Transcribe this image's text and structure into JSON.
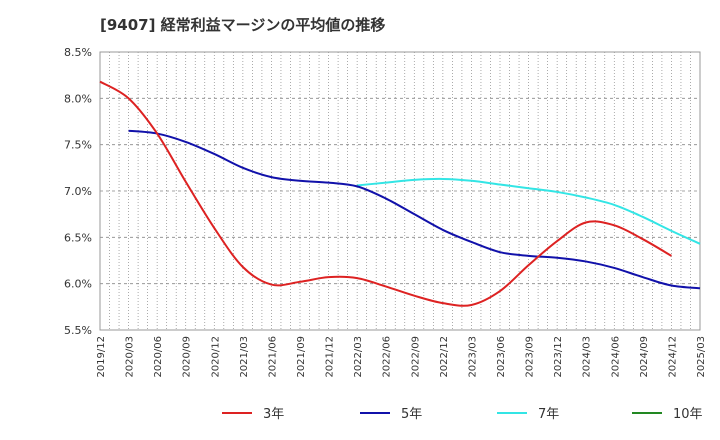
{
  "chart_data": {
    "type": "line",
    "title": "[9407]  経常利益マージンの平均値の推移",
    "xlabel": "",
    "ylabel": "",
    "ylim": [
      5.5,
      8.5
    ],
    "y_ticks": [
      "8.5%",
      "8.0%",
      "7.5%",
      "7.0%",
      "6.5%",
      "6.0%",
      "5.5%"
    ],
    "y_tick_values": [
      8.5,
      8.0,
      7.5,
      7.0,
      6.5,
      6.0,
      5.5
    ],
    "x_ticks": [
      "2019/12",
      "2020/03",
      "2020/06",
      "2020/09",
      "2020/12",
      "2021/03",
      "2021/06",
      "2021/09",
      "2021/12",
      "2022/03",
      "2022/06",
      "2022/09",
      "2022/12",
      "2023/03",
      "2023/06",
      "2023/09",
      "2023/12",
      "2024/03",
      "2024/06",
      "2024/09",
      "2024/12",
      "2025/03"
    ],
    "grid": true,
    "legend_position": "bottom",
    "series": [
      {
        "name": "3年",
        "color": "#dd2222",
        "start_index": 0,
        "values": [
          8.18,
          8.0,
          7.62,
          7.1,
          6.6,
          6.18,
          5.99,
          6.02,
          6.07,
          6.06,
          5.97,
          5.87,
          5.79,
          5.77,
          5.92,
          6.2,
          6.46,
          6.66,
          6.63,
          6.48,
          6.3
        ]
      },
      {
        "name": "5年",
        "color": "#1111aa",
        "start_index": 1,
        "values": [
          7.65,
          7.62,
          7.53,
          7.4,
          7.25,
          7.15,
          7.11,
          7.09,
          7.05,
          6.92,
          6.75,
          6.58,
          6.45,
          6.34,
          6.3,
          6.28,
          6.24,
          6.17,
          6.07,
          5.98,
          5.95
        ]
      },
      {
        "name": "7年",
        "color": "#33e5e5",
        "start_index": 9,
        "values": [
          7.06,
          7.09,
          7.12,
          7.13,
          7.11,
          7.07,
          7.03,
          6.99,
          6.93,
          6.85,
          6.72,
          6.57,
          6.43
        ]
      },
      {
        "name": "10年",
        "color": "#228822",
        "start_index": 0,
        "values": []
      }
    ]
  }
}
